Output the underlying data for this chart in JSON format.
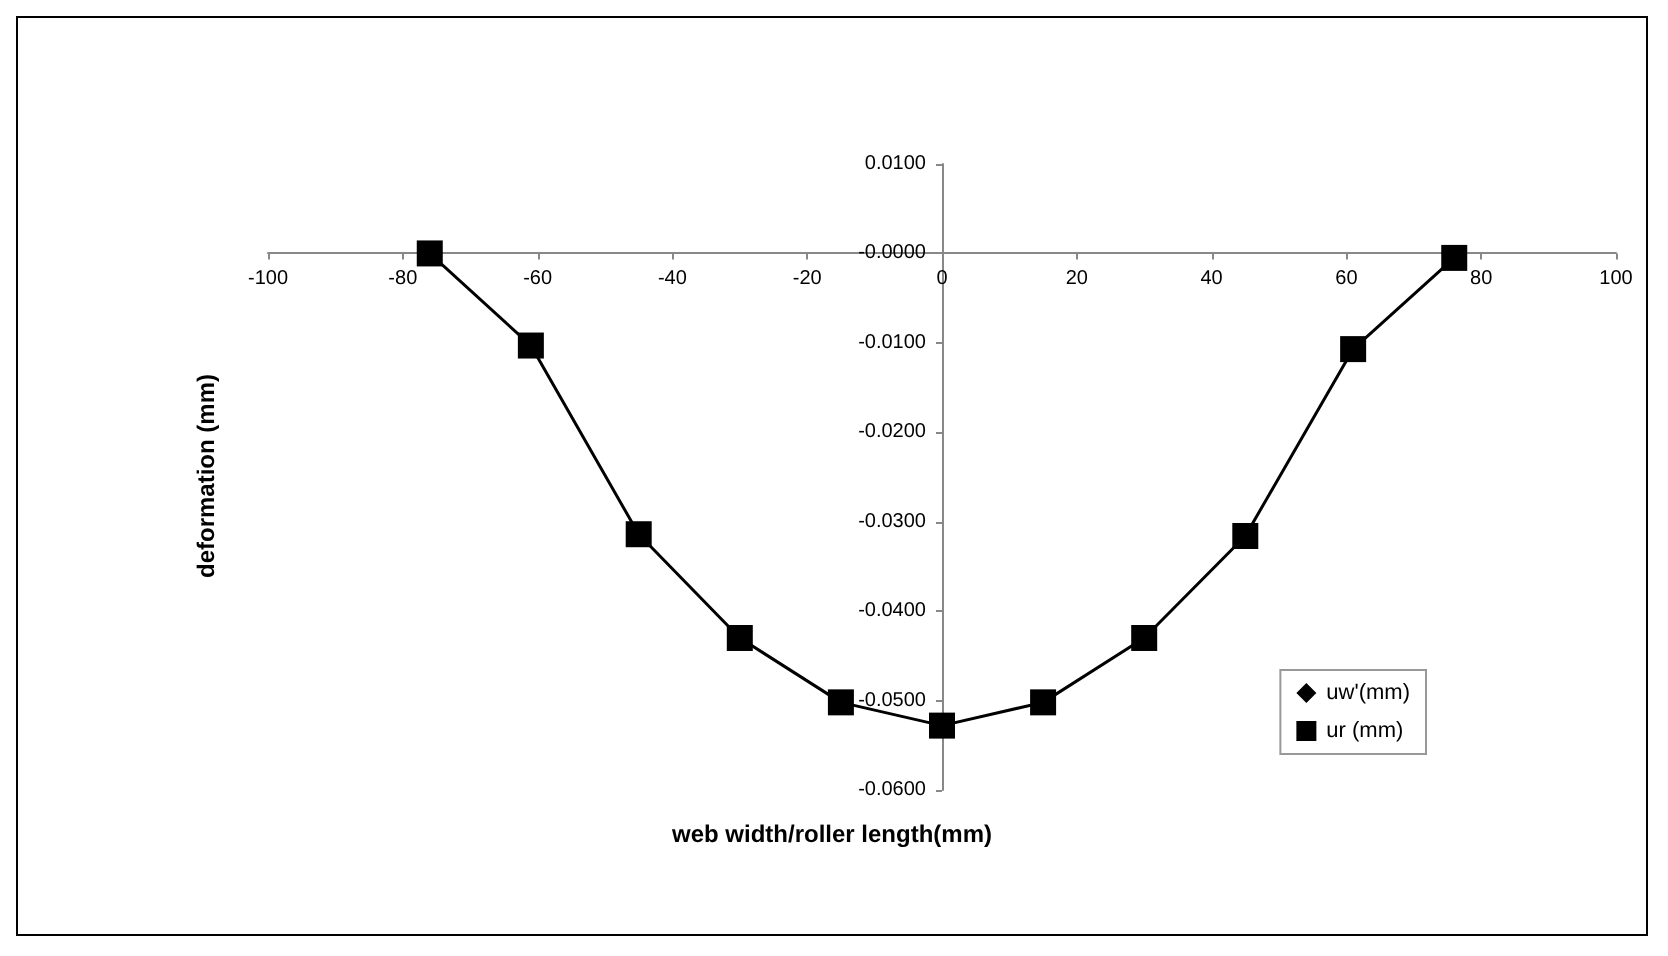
{
  "chart_data": {
    "type": "line",
    "xlabel": "web width/roller length(mm)",
    "ylabel": "deformation (mm)",
    "series": [
      {
        "name": "uw'(mm)",
        "color": "#000000",
        "marker": "diamond",
        "values": [
          null,
          null,
          null,
          null,
          null,
          null,
          null,
          null,
          null,
          null,
          null
        ]
      },
      {
        "name": "ur (mm)",
        "color": "#000000",
        "marker": "square",
        "values": [
          0,
          -0.0103,
          -0.0314,
          -0.043,
          -0.0502,
          -0.0528,
          -0.0502,
          -0.043,
          -0.0316,
          -0.0107,
          -0.0005
        ]
      }
    ],
    "x": [
      -76,
      -61,
      -45,
      -30,
      -15,
      0,
      15,
      30,
      45,
      61,
      76
    ],
    "xlim": [
      -100,
      100
    ],
    "xticks": [
      -100,
      -80,
      -60,
      -40,
      -20,
      0,
      20,
      40,
      60,
      80,
      100
    ],
    "ylim": [
      -0.06,
      0.01
    ],
    "yticks": [
      {
        "value": 0.01,
        "label": "0.0100"
      },
      {
        "value": 0,
        "label": "-0.0000"
      },
      {
        "value": -0.01,
        "label": "-0.0100"
      },
      {
        "value": -0.02,
        "label": "-0.0200"
      },
      {
        "value": -0.03,
        "label": "-0.0300"
      },
      {
        "value": -0.04,
        "label": "-0.0400"
      },
      {
        "value": -0.05,
        "label": "-0.0500"
      },
      {
        "value": -0.06,
        "label": "-0.0600"
      }
    ],
    "grid": false,
    "legend": "bottom right",
    "line_style": "solid"
  }
}
